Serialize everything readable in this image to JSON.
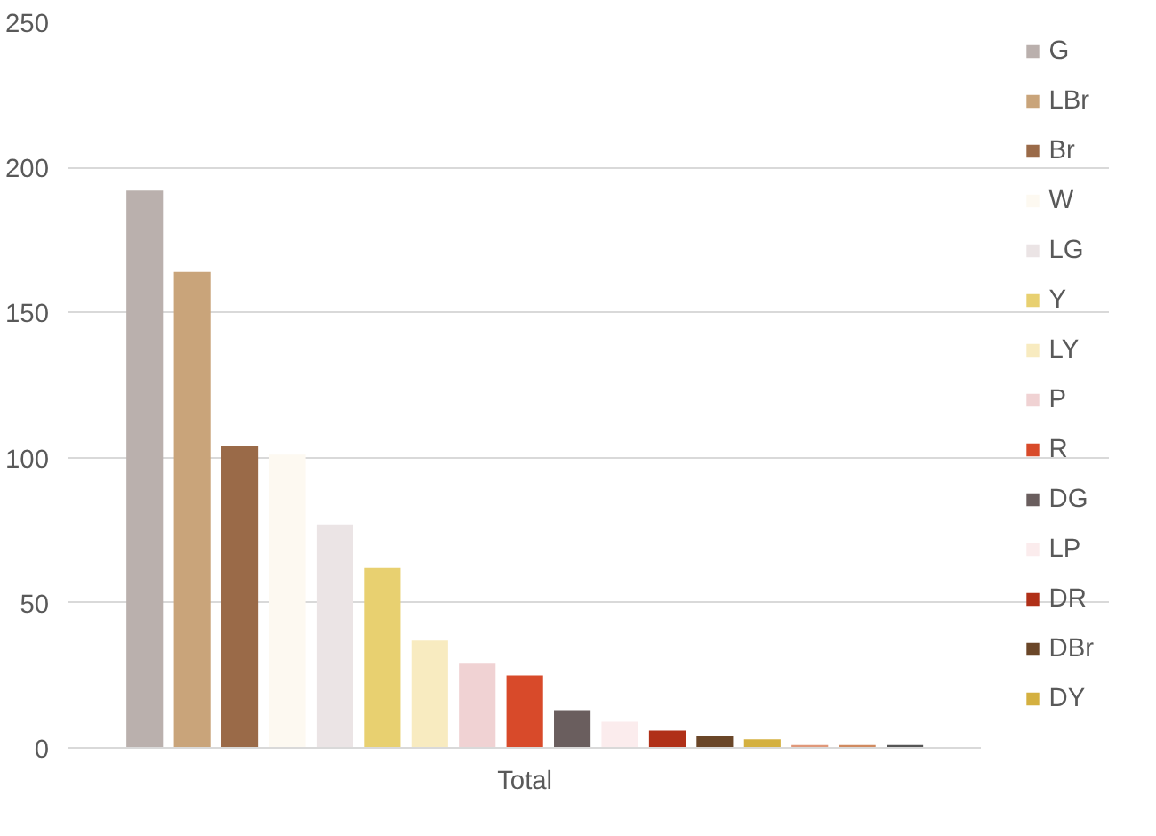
{
  "chart_data": {
    "type": "bar",
    "categories": [
      "Total"
    ],
    "series": [
      {
        "name": "G",
        "color": "#bab0ad",
        "values": [
          192
        ]
      },
      {
        "name": "LBr",
        "color": "#c9a47a",
        "values": [
          164
        ]
      },
      {
        "name": "Br",
        "color": "#9a6a48",
        "values": [
          104
        ]
      },
      {
        "name": "W",
        "color": "#fdf9f1",
        "values": [
          101
        ]
      },
      {
        "name": "LG",
        "color": "#ebe4e5",
        "values": [
          77
        ]
      },
      {
        "name": "Y",
        "color": "#e8d070",
        "values": [
          62
        ]
      },
      {
        "name": "LY",
        "color": "#f8ebc0",
        "values": [
          37
        ]
      },
      {
        "name": "P",
        "color": "#f0d2d3",
        "values": [
          29
        ]
      },
      {
        "name": "R",
        "color": "#d84a2a",
        "values": [
          25
        ]
      },
      {
        "name": "DG",
        "color": "#6a5e5e",
        "values": [
          13
        ]
      },
      {
        "name": "LP",
        "color": "#fbeced",
        "values": [
          9
        ]
      },
      {
        "name": "DR",
        "color": "#b03018",
        "values": [
          6
        ]
      },
      {
        "name": "DBr",
        "color": "#6a4628",
        "values": [
          4
        ]
      },
      {
        "name": "DY",
        "color": "#d4b040",
        "values": [
          3
        ]
      },
      {
        "color": "#e0987a",
        "values": [
          1
        ]
      },
      {
        "color": "#d08a60",
        "values": [
          1
        ]
      },
      {
        "color": "#555555",
        "values": [
          1
        ]
      }
    ],
    "ylim": [
      0,
      250
    ],
    "yticks": [
      0,
      50,
      100,
      150,
      200,
      250
    ],
    "grid": "y",
    "legend": "right"
  }
}
